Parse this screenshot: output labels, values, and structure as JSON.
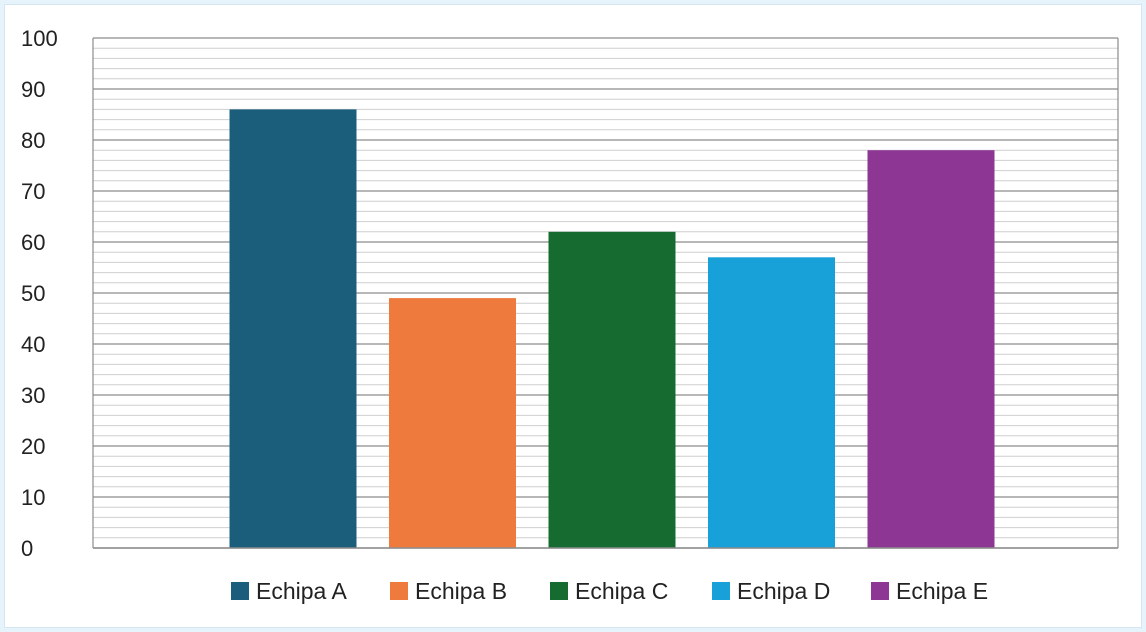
{
  "chart_data": {
    "type": "bar",
    "title": "",
    "xlabel": "",
    "ylabel": "",
    "categories": [
      "Echipa A",
      "Echipa B",
      "Echipa C",
      "Echipa D",
      "Echipa E"
    ],
    "values": [
      86,
      49,
      62,
      57,
      78
    ],
    "colors": [
      "#1a5e7c",
      "#ee7a3d",
      "#166c30",
      "#18a0d8",
      "#8e3693"
    ],
    "ylim": [
      0,
      100
    ],
    "y_major_step": 10,
    "y_minor_step": 2,
    "y_ticks": [
      "0",
      "10",
      "20",
      "30",
      "40",
      "50",
      "60",
      "70",
      "80",
      "90",
      "100"
    ],
    "grid": true,
    "legend_position": "bottom"
  }
}
